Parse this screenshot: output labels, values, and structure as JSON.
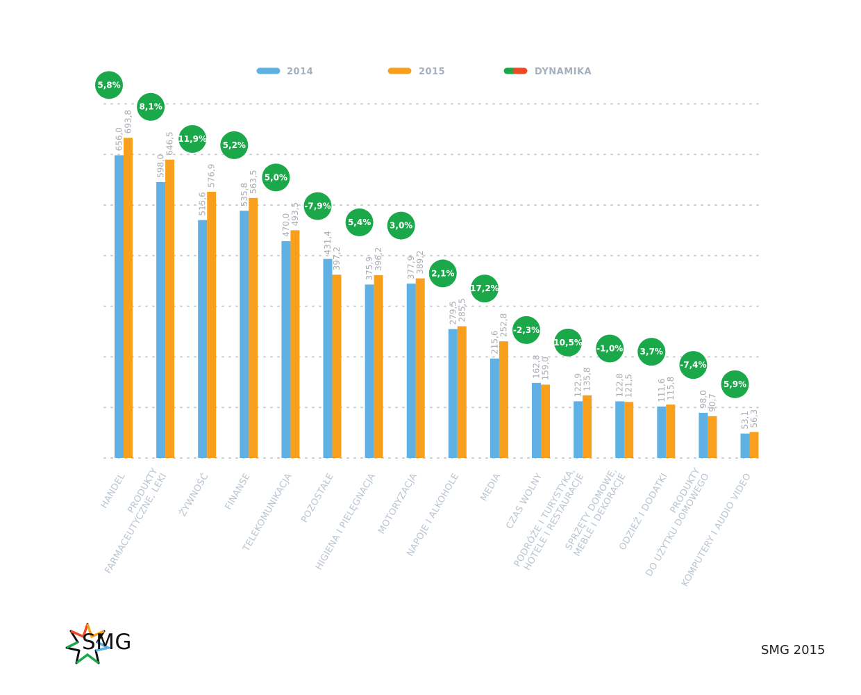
{
  "chart_data": {
    "type": "bar",
    "categories": [
      [
        "HANDEL"
      ],
      [
        "PRODUKTY",
        "FARMACEUTYCZNE, LEKI"
      ],
      [
        "ŻYWNOŚĆ"
      ],
      [
        "FINANSE"
      ],
      [
        "TELEKOMUNIKACJA"
      ],
      [
        "POZOSTAŁE"
      ],
      [
        "HIGIENA I PIELĘGNACJA"
      ],
      [
        "MOTORYZACJA"
      ],
      [
        "NAPOJE I ALKOHOLE"
      ],
      [
        "MEDIA"
      ],
      [
        "CZAS WOLNY"
      ],
      [
        "PODRÓŻE I TURYSTYKA,",
        "HOTELE I RESTAURACJE"
      ],
      [
        "SPRZĘTY DOMOWE,",
        "MEBLE I DEKORACJE"
      ],
      [
        "ODZIEŻ I DODATKI"
      ],
      [
        "PRODUKTY",
        "DO UŻYTKU DOMOWEGO"
      ],
      [
        "KOMPUTERY I AUDIO VIDEO"
      ]
    ],
    "series": [
      {
        "name": "2014",
        "color": "#5fb0e3",
        "values": [
          656.0,
          598.0,
          515.6,
          535.8,
          470.0,
          431.4,
          375.9,
          377.9,
          279.5,
          215.6,
          162.8,
          122.9,
          122.8,
          111.6,
          98.0,
          53.1
        ],
        "labels": [
          "656,0",
          "598,0",
          "515,6",
          "535,8",
          "470,0",
          "431,4",
          "375,9",
          "377,9",
          "279,5",
          "215,6",
          "162,8",
          "122,9",
          "122,8",
          "111,6",
          "98,0",
          "53,1"
        ]
      },
      {
        "name": "2015",
        "color": "#f8a01e",
        "values": [
          693.8,
          646.5,
          576.9,
          563.5,
          493.5,
          397.2,
          396.2,
          389.2,
          285.5,
          252.8,
          159.0,
          135.8,
          121.5,
          115.8,
          90.7,
          56.3
        ],
        "labels": [
          "693,8",
          "646,5",
          "576,9",
          "563,5",
          "493,5",
          "397,2",
          "396,2",
          "389,2",
          "285,5",
          "252,8",
          "159,0",
          "135,8",
          "121,5",
          "115,8",
          "90,7",
          "56,3"
        ]
      }
    ],
    "dynamics": {
      "name": "DYNAMIKA",
      "color": "#1ba84a",
      "legend_colors": [
        "#1ba84a",
        "#ef4a25"
      ],
      "labels": [
        "5,8%",
        "8,1%",
        "11,9%",
        "5,2%",
        "5,0%",
        "-7,9%",
        "5,4%",
        "3,0%",
        "2,1%",
        "17,2%",
        "-2,3%",
        "10,5%",
        "-1,0%",
        "3,7%",
        "-7,4%",
        "5,9%"
      ]
    },
    "grid": true,
    "legend_position": "top"
  },
  "brand": {
    "logo_text": "SMG",
    "footer": "SMG 2015"
  }
}
